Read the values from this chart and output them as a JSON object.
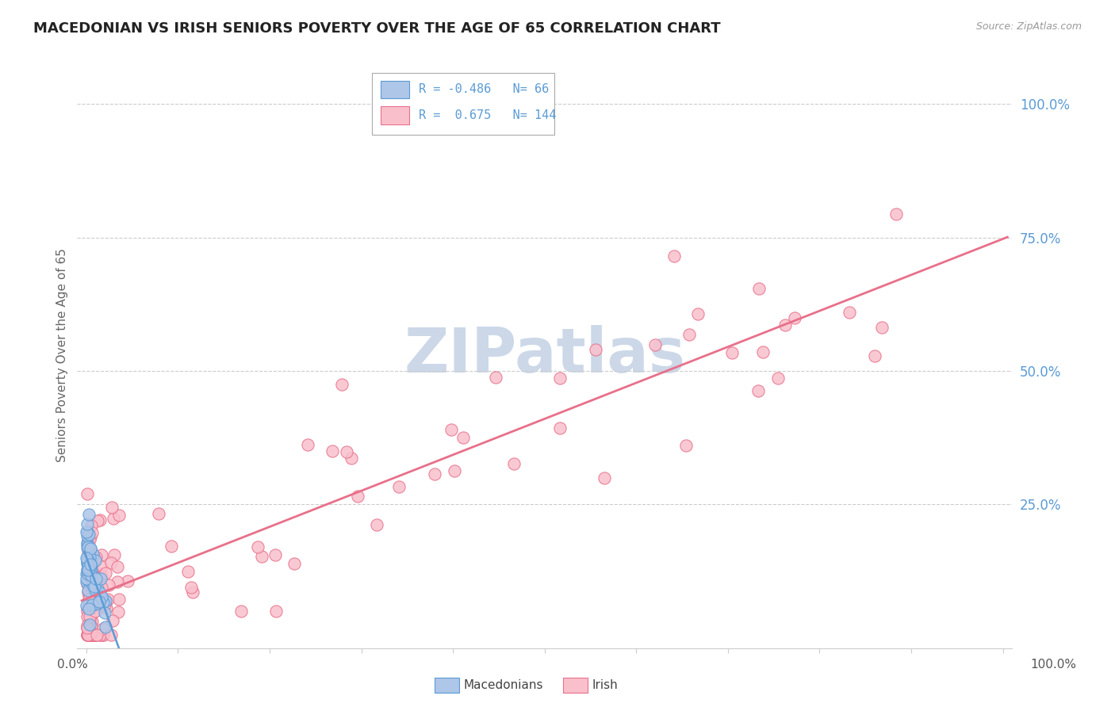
{
  "title": "MACEDONIAN VS IRISH SENIORS POVERTY OVER THE AGE OF 65 CORRELATION CHART",
  "ylabel": "Seniors Poverty Over the Age of 65",
  "source_text": "Source: ZipAtlas.com",
  "legend_R_mac": "-0.486",
  "legend_N_mac": "66",
  "legend_R_irish": "0.675",
  "legend_N_irish": "144",
  "mac_fill_color": "#aec6e8",
  "mac_edge_color": "#5b9bd5",
  "irish_fill_color": "#f9c0cc",
  "irish_edge_color": "#e8708a",
  "mac_line_color": "#5b9bd5",
  "irish_line_color": "#e8708a",
  "ytick_labels": [
    "25.0%",
    "50.0%",
    "75.0%",
    "100.0%"
  ],
  "ytick_values": [
    0.25,
    0.5,
    0.75,
    1.0
  ],
  "background_color": "#ffffff",
  "watermark_color": "#ccd8e8",
  "label_color": "#5b9bd5",
  "title_color": "#222222"
}
